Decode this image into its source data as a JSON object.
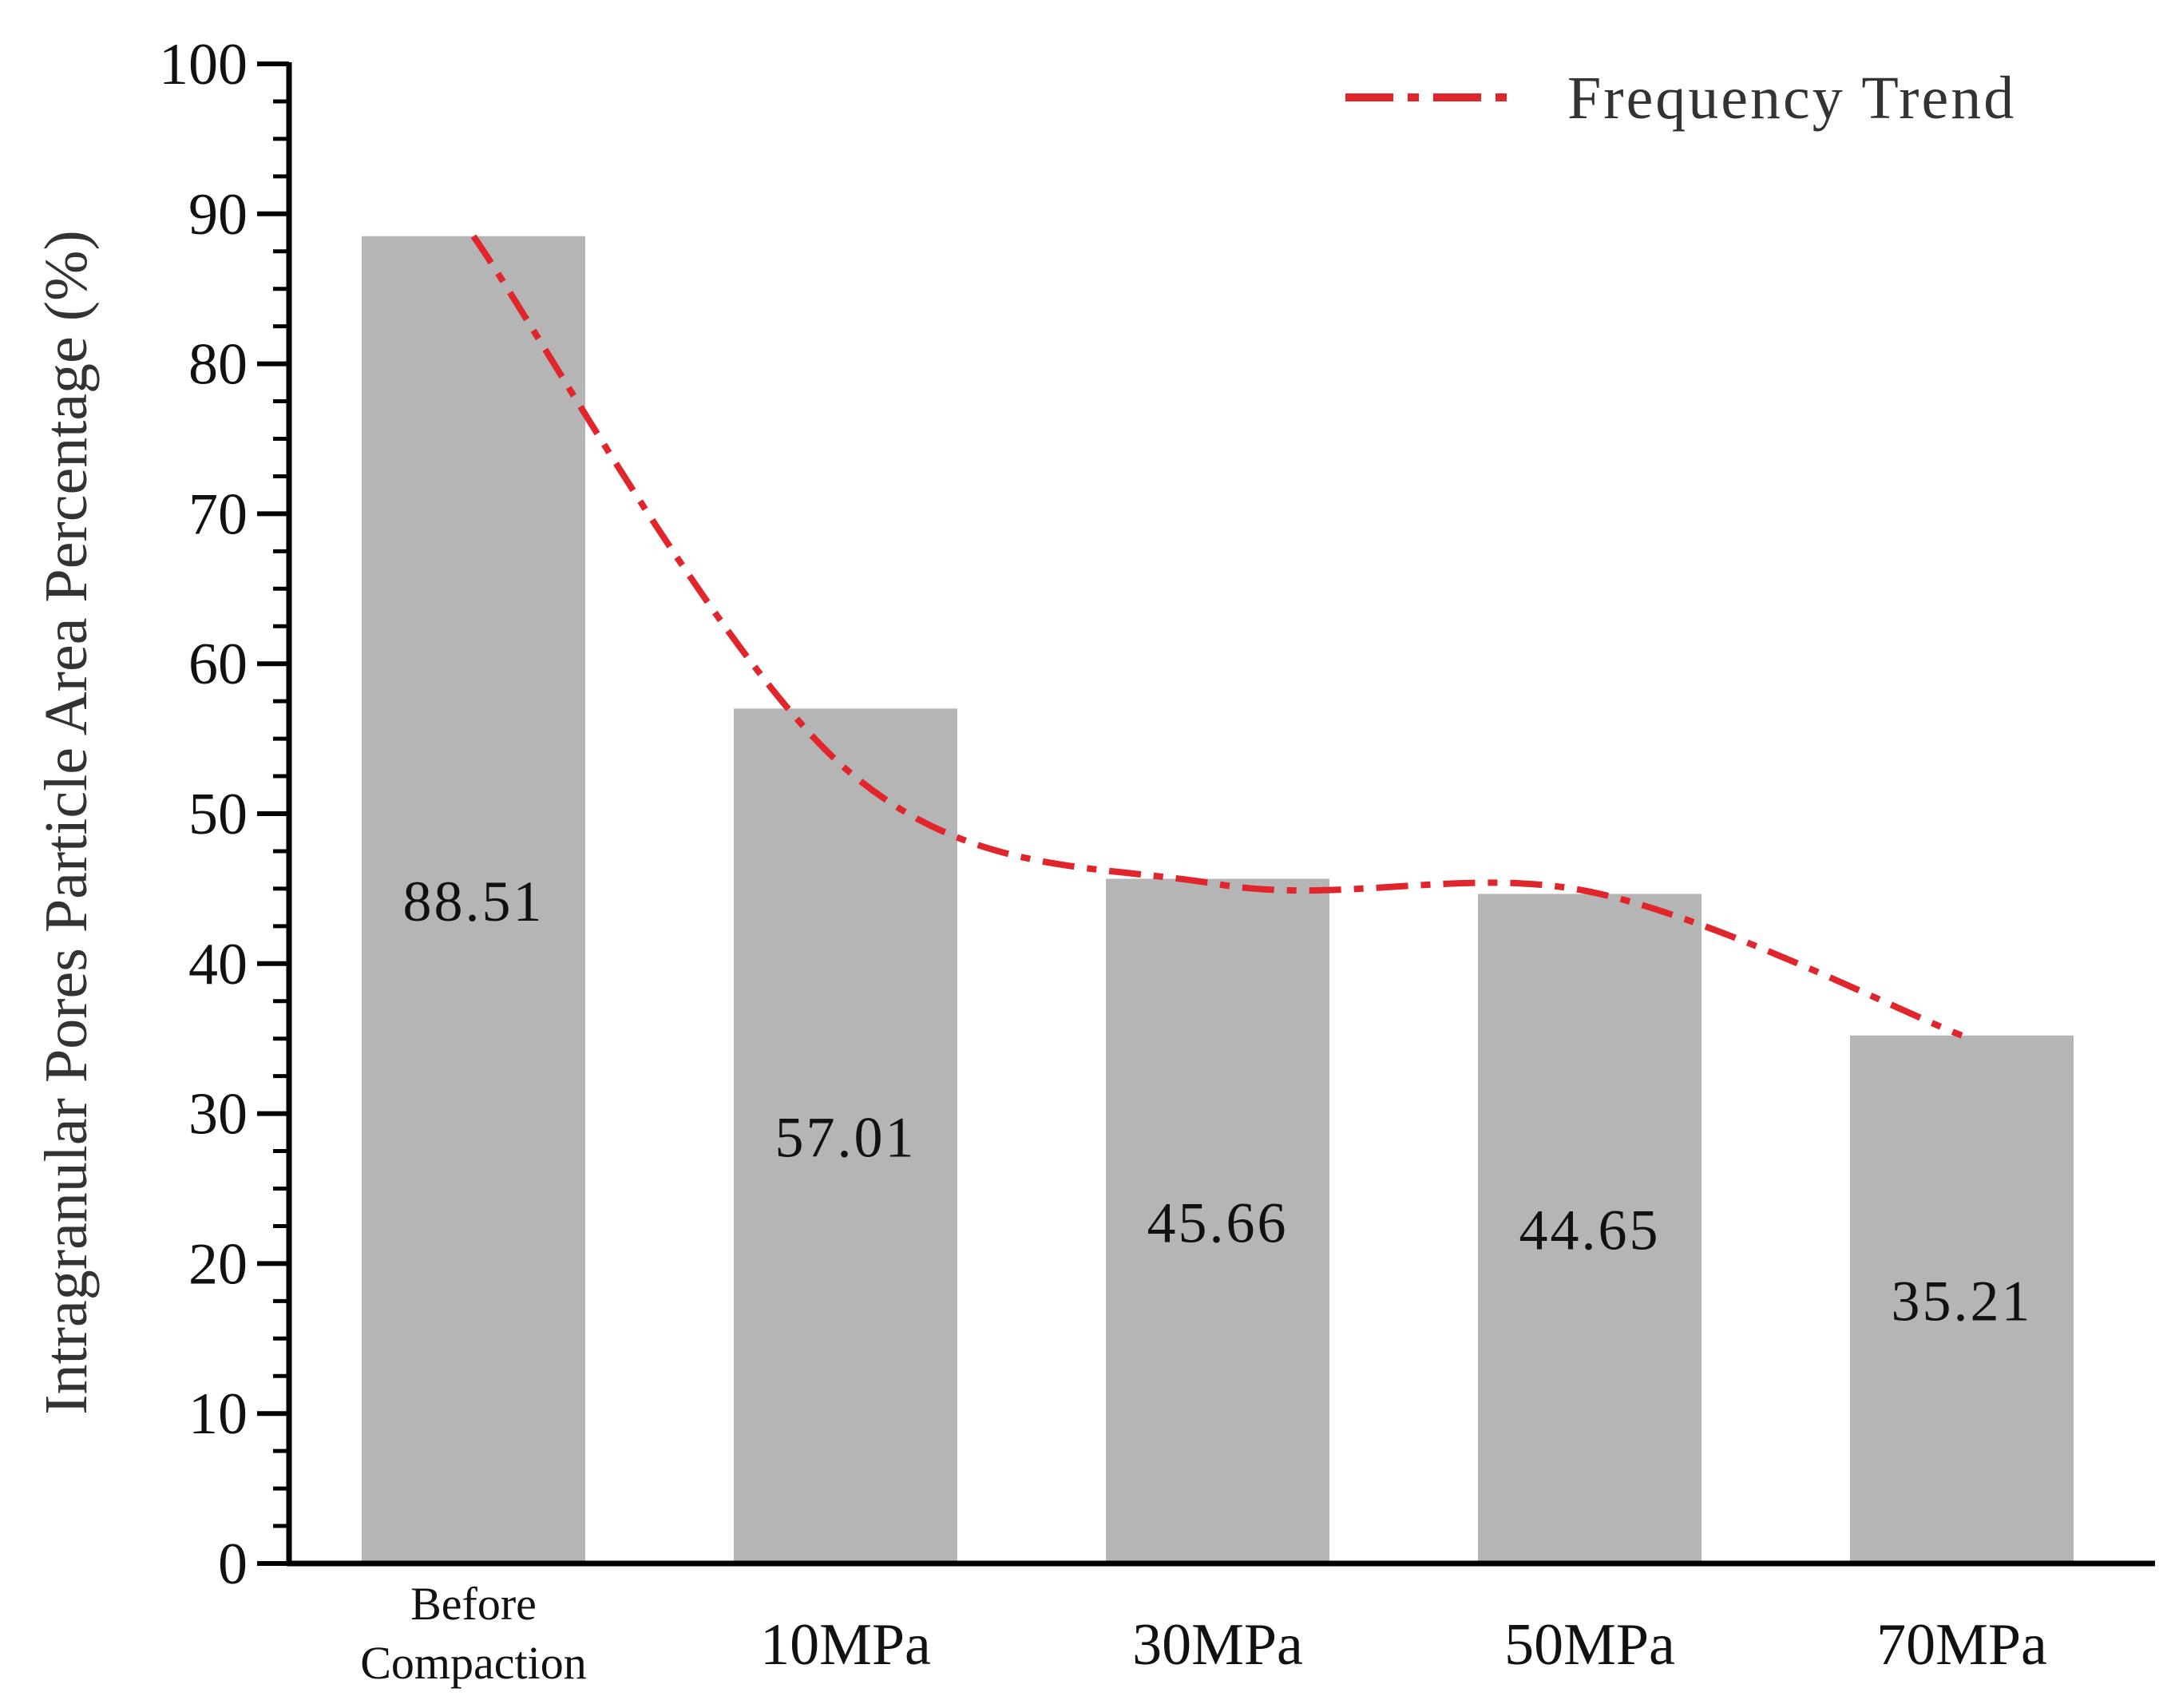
{
  "chart_data": {
    "type": "bar",
    "title": "",
    "xlabel": "",
    "ylabel": "Intragranular Pores Particle Area  Percentage (%)",
    "ylim": [
      0,
      100
    ],
    "yticks": [
      0,
      10,
      20,
      30,
      40,
      50,
      60,
      70,
      80,
      90,
      100
    ],
    "grid": false,
    "categories": [
      {
        "lines": [
          "Before",
          "Compaction"
        ]
      },
      {
        "lines": [
          "10MPa"
        ]
      },
      {
        "lines": [
          "30MPa"
        ]
      },
      {
        "lines": [
          "50MPa"
        ]
      },
      {
        "lines": [
          "70MPa"
        ]
      }
    ],
    "values": [
      88.51,
      57.01,
      45.66,
      44.65,
      35.21
    ],
    "data_labels": [
      "88.51",
      "57.01",
      "45.66",
      "44.65",
      "35.21"
    ],
    "bar_color": "#b5b5b5",
    "trend": {
      "name": "Frequency Trend",
      "style": "dash-dot",
      "color": "#e0262c",
      "values": [
        88.51,
        53.0,
        45.3,
        44.8,
        35.21
      ]
    },
    "legend": {
      "position": "top-right",
      "entries": [
        "Frequency Trend"
      ]
    }
  }
}
